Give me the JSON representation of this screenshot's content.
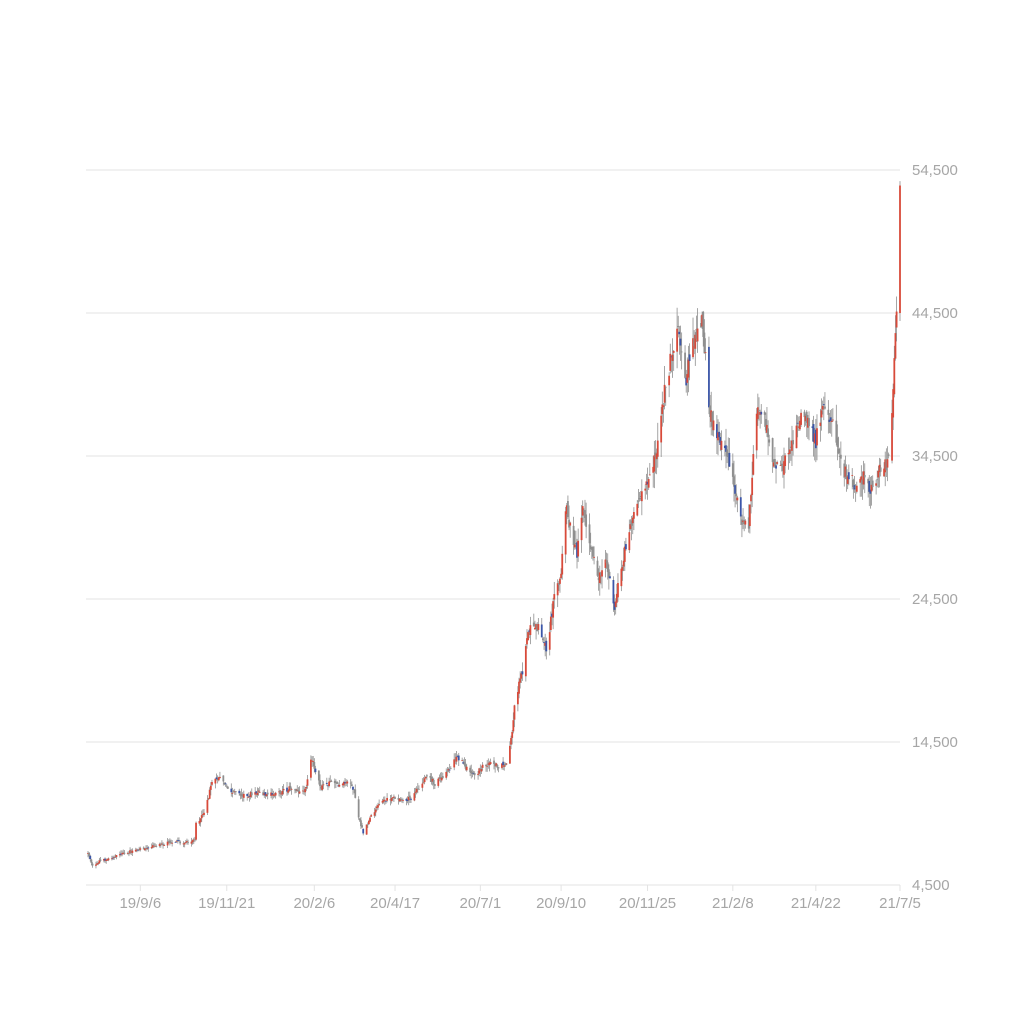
{
  "chart_data": {
    "type": "candlestick",
    "colors": {
      "up": "#d84a3a",
      "down": "#3b55a8",
      "grid": "#e3e3e3",
      "text": "#a6a6a6"
    },
    "y_axis": {
      "position": "right",
      "ylim": [
        4500,
        54500
      ],
      "ticks": [
        {
          "value": 54500,
          "label": "54,500"
        },
        {
          "value": 44500,
          "label": "44,500"
        },
        {
          "value": 34500,
          "label": "34,500"
        },
        {
          "value": 24500,
          "label": "24,500"
        },
        {
          "value": 14500,
          "label": "14,500"
        },
        {
          "value": 4500,
          "label": "4,500"
        }
      ]
    },
    "x_axis": {
      "start_date": "2019-07-22",
      "end_date": "2021-07-05",
      "ticks": [
        {
          "date": "2019-09-06",
          "label": "19/9/6"
        },
        {
          "date": "2019-11-21",
          "label": "19/11/21"
        },
        {
          "date": "2020-02-06",
          "label": "20/2/6"
        },
        {
          "date": "2020-04-17",
          "label": "20/4/17"
        },
        {
          "date": "2020-07-01",
          "label": "20/7/1"
        },
        {
          "date": "2020-09-10",
          "label": "20/9/10"
        },
        {
          "date": "2020-11-25",
          "label": "20/11/25"
        },
        {
          "date": "2021-02-08",
          "label": "21/2/8"
        },
        {
          "date": "2021-04-22",
          "label": "21/4/22"
        },
        {
          "date": "2021-07-05",
          "label": "21/7/5"
        }
      ]
    },
    "close_path": [
      [
        "2019-07-22",
        6700
      ],
      [
        "2019-07-26",
        5800
      ],
      [
        "2019-08-02",
        6200
      ],
      [
        "2019-08-13",
        6400
      ],
      [
        "2019-08-21",
        6700
      ],
      [
        "2019-09-06",
        7000
      ],
      [
        "2019-09-20",
        7300
      ],
      [
        "2019-10-04",
        7500
      ],
      [
        "2019-10-18",
        7500
      ],
      [
        "2019-10-24",
        7600
      ],
      [
        "2019-10-25",
        8800
      ],
      [
        "2019-11-01",
        9500
      ],
      [
        "2019-11-08",
        11600
      ],
      [
        "2019-11-15",
        12200
      ],
      [
        "2019-11-21",
        11300
      ],
      [
        "2019-12-05",
        10700
      ],
      [
        "2019-12-19",
        11000
      ],
      [
        "2020-01-02",
        10800
      ],
      [
        "2020-01-16",
        11300
      ],
      [
        "2020-01-24",
        10900
      ],
      [
        "2020-01-30",
        11200
      ],
      [
        "2020-02-03",
        13400
      ],
      [
        "2020-02-06",
        12800
      ],
      [
        "2020-02-12",
        11300
      ],
      [
        "2020-02-20",
        11700
      ],
      [
        "2020-02-28",
        11400
      ],
      [
        "2020-03-06",
        11800
      ],
      [
        "2020-03-12",
        11200
      ],
      [
        "2020-03-16",
        9200
      ],
      [
        "2020-03-20",
        8200
      ],
      [
        "2020-03-27",
        9300
      ],
      [
        "2020-04-03",
        10300
      ],
      [
        "2020-04-17",
        10600
      ],
      [
        "2020-04-30",
        10500
      ],
      [
        "2020-05-08",
        11300
      ],
      [
        "2020-05-15",
        12200
      ],
      [
        "2020-05-22",
        11600
      ],
      [
        "2020-06-01",
        12300
      ],
      [
        "2020-06-10",
        13500
      ],
      [
        "2020-06-19",
        12700
      ],
      [
        "2020-06-26",
        12200
      ],
      [
        "2020-07-01",
        12600
      ],
      [
        "2020-07-10",
        13200
      ],
      [
        "2020-07-17",
        12800
      ],
      [
        "2020-07-24",
        13000
      ],
      [
        "2020-07-28",
        14600
      ],
      [
        "2020-07-31",
        17100
      ],
      [
        "2020-08-07",
        19500
      ],
      [
        "2020-08-14",
        23000
      ],
      [
        "2020-08-21",
        22500
      ],
      [
        "2020-08-28",
        21000
      ],
      [
        "2020-09-04",
        24500
      ],
      [
        "2020-09-10",
        26400
      ],
      [
        "2020-09-14",
        31000
      ],
      [
        "2020-09-18",
        29500
      ],
      [
        "2020-09-24",
        27800
      ],
      [
        "2020-09-29",
        30800
      ],
      [
        "2020-10-06",
        28200
      ],
      [
        "2020-10-13",
        26000
      ],
      [
        "2020-10-20",
        27000
      ],
      [
        "2020-10-27",
        24000
      ],
      [
        "2020-11-02",
        26500
      ],
      [
        "2020-11-09",
        29500
      ],
      [
        "2020-11-16",
        31500
      ],
      [
        "2020-11-25",
        33000
      ],
      [
        "2020-12-02",
        34500
      ],
      [
        "2020-12-09",
        38500
      ],
      [
        "2020-12-16",
        41500
      ],
      [
        "2020-12-22",
        44000
      ],
      [
        "2020-12-29",
        40000
      ],
      [
        "2021-01-05",
        42500
      ],
      [
        "2021-01-12",
        44000
      ],
      [
        "2021-01-19",
        37500
      ],
      [
        "2021-01-26",
        36000
      ],
      [
        "2021-02-02",
        35000
      ],
      [
        "2021-02-08",
        33000
      ],
      [
        "2021-02-15",
        30000
      ],
      [
        "2021-02-22",
        29500
      ],
      [
        "2021-03-01",
        38000
      ],
      [
        "2021-03-08",
        37000
      ],
      [
        "2021-03-15",
        34000
      ],
      [
        "2021-03-22",
        33500
      ],
      [
        "2021-03-29",
        34500
      ],
      [
        "2021-04-05",
        36500
      ],
      [
        "2021-04-12",
        37500
      ],
      [
        "2021-04-22",
        35500
      ],
      [
        "2021-04-29",
        38500
      ],
      [
        "2021-05-06",
        37000
      ],
      [
        "2021-05-13",
        34000
      ],
      [
        "2021-05-20",
        33000
      ],
      [
        "2021-05-27",
        32500
      ],
      [
        "2021-06-03",
        33000
      ],
      [
        "2021-06-10",
        32200
      ],
      [
        "2021-06-17",
        33500
      ],
      [
        "2021-06-24",
        34000
      ],
      [
        "2021-06-28",
        38000
      ],
      [
        "2021-07-01",
        42500
      ],
      [
        "2021-07-02",
        44000
      ],
      [
        "2021-07-05",
        53500
      ]
    ]
  }
}
